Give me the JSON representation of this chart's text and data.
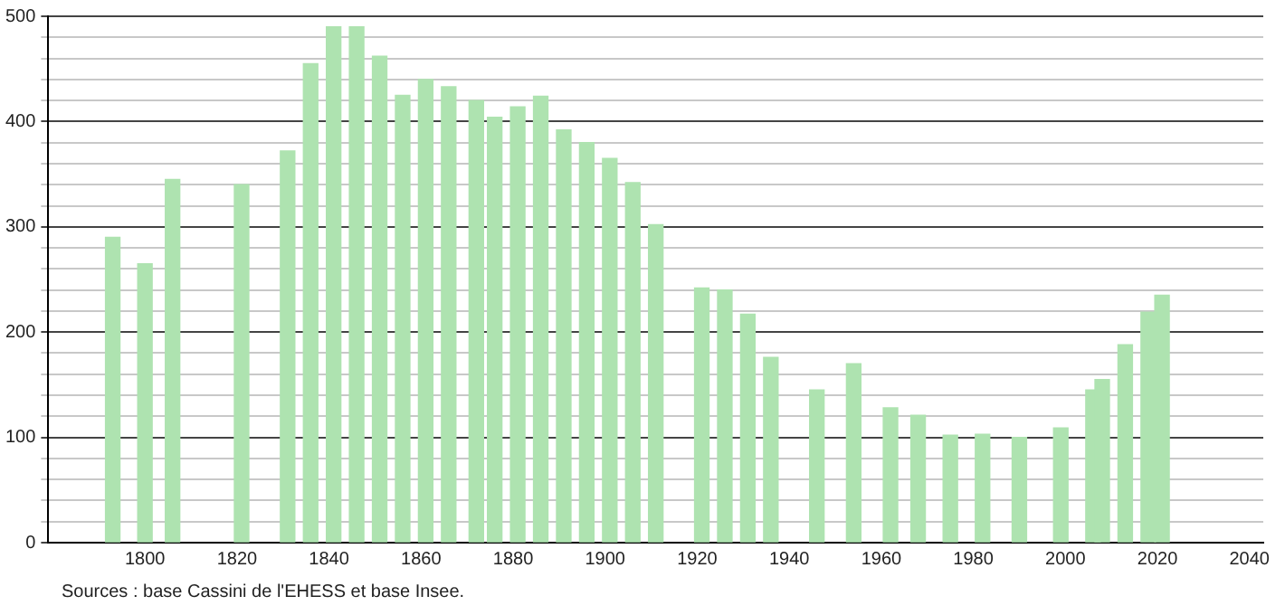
{
  "chart_data": {
    "type": "bar",
    "x": [
      1793,
      1800,
      1806,
      1821,
      1831,
      1836,
      1841,
      1846,
      1851,
      1856,
      1861,
      1866,
      1872,
      1876,
      1881,
      1886,
      1891,
      1896,
      1901,
      1906,
      1911,
      1921,
      1926,
      1931,
      1936,
      1946,
      1954,
      1962,
      1968,
      1975,
      1982,
      1990,
      1999,
      2006,
      2008,
      2013,
      2018,
      2021
    ],
    "values": [
      290,
      265,
      345,
      340,
      372,
      455,
      490,
      490,
      462,
      425,
      440,
      433,
      420,
      404,
      414,
      424,
      392,
      380,
      365,
      342,
      302,
      242,
      240,
      217,
      176,
      145,
      170,
      128,
      121,
      102,
      103,
      100,
      109,
      145,
      155,
      188,
      219,
      235
    ],
    "color": "#aee3b0",
    "xlim": [
      1779,
      2043
    ],
    "xticks": [
      1800,
      1820,
      1840,
      1860,
      1880,
      1900,
      1920,
      1940,
      1960,
      1980,
      2000,
      2020,
      2040
    ],
    "ylim": [
      0,
      500
    ],
    "yticks": [
      0,
      {
        "value": 20,
        "label": null
      },
      {
        "value": 40,
        "label": null
      },
      {
        "value": 60,
        "label": null
      },
      {
        "value": 80,
        "label": null
      },
      100,
      {
        "value": 120,
        "label": null
      },
      {
        "value": 140,
        "label": null
      },
      {
        "value": 160,
        "label": null
      },
      {
        "value": 180,
        "label": null
      },
      200,
      {
        "value": 220,
        "label": null
      },
      {
        "value": 240,
        "label": null
      },
      {
        "value": 260,
        "label": null
      },
      {
        "value": 280,
        "label": null
      },
      300,
      {
        "value": 320,
        "label": null
      },
      {
        "value": 340,
        "label": null
      },
      {
        "value": 360,
        "label": null
      },
      {
        "value": 380,
        "label": null
      },
      400,
      {
        "value": 420,
        "label": null
      },
      {
        "value": 440,
        "label": null
      },
      {
        "value": 460,
        "label": null
      },
      {
        "value": 480,
        "label": null
      },
      500
    ],
    "grid": "y",
    "legend": false,
    "annotations": [
      "Sources : base Cassini de l'EHESS et base Insee."
    ]
  }
}
